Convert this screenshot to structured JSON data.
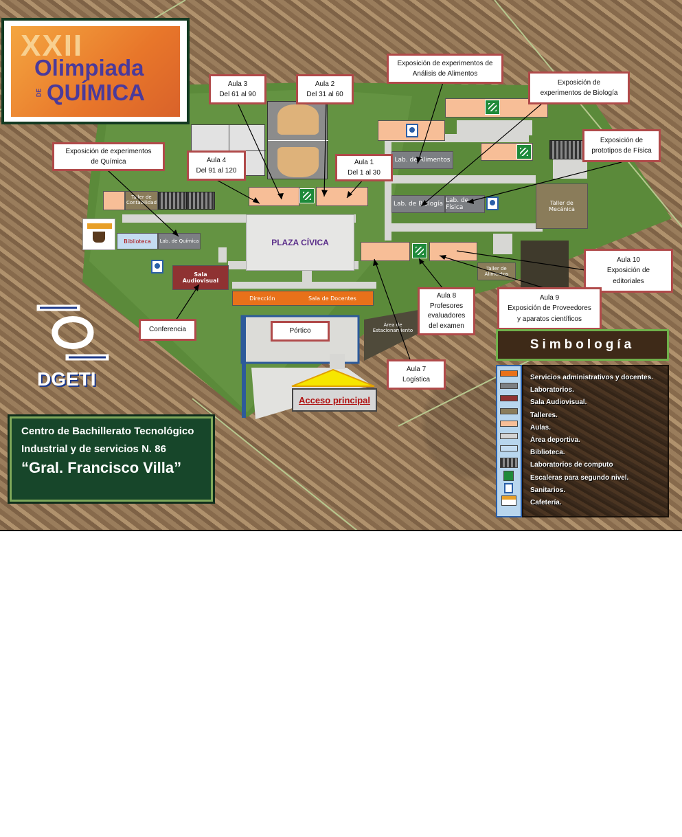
{
  "event_logo": {
    "line1": "XXII",
    "line2": "Olimpiada",
    "de": "DE",
    "line3": "QUÍMICA"
  },
  "map_labels": {
    "plaza_civica": "PLAZA CÍVICA",
    "direccion": "Dirección",
    "sala_docentes": "Sala de Docentes",
    "biblioteca": "Biblioteca",
    "lab_quimica": "Lab. de Química",
    "taller_contabilidad": "Taller de Contabilidad",
    "lab_alimentos": "Lab. de Alimentos",
    "lab_biologia": "Lab. de Biología",
    "lab_fisica": "Lab. de Física",
    "taller_mecanica": "Taller de Mecánica",
    "taller_alimentos": "Taller de Alimentos",
    "sala_audiovisual": "Sala Audiovisual",
    "estacionamiento": "Área de Estacionamiento",
    "acceso_principal": "Acceso principal"
  },
  "callouts": {
    "aula3": {
      "line1": "Aula 3",
      "line2": "Del 61 al 90"
    },
    "aula2": {
      "line1": "Aula 2",
      "line2": "Del 31 al 60"
    },
    "aula4": {
      "line1": "Aula 4",
      "line2": "Del 91 al 120"
    },
    "aula1": {
      "line1": "Aula 1",
      "line2": "Del 1 al 30"
    },
    "exp_quimica": {
      "line1": "Exposición de experimentos",
      "line2": "de Química"
    },
    "exp_alimentos": {
      "line1": "Exposición de experimentos de",
      "line2": "Análisis de Alimentos"
    },
    "exp_biologia": {
      "line1": "Exposición de",
      "line2": "experimentos de Biología"
    },
    "exp_fisica": {
      "line1": "Exposición de",
      "line2": "prototipos de Física"
    },
    "aula10": {
      "line1": "Aula 10",
      "line2": "Exposición de",
      "line3": "editoriales"
    },
    "aula9": {
      "line1": "Aula 9",
      "line2": "Exposición de Proveedores",
      "line3": "y aparatos científicos"
    },
    "aula8": {
      "line1": "Aula 8",
      "line2": "Profesores",
      "line3": "evaluadores",
      "line4": "del examen"
    },
    "aula7": {
      "line1": "Aula 7",
      "line2": "Logística"
    },
    "conferencia": {
      "line1": "Conferencia"
    },
    "portico": {
      "line1": "Pórtico"
    }
  },
  "dgeti_logo_text": "DGETI",
  "school": {
    "line1": "Centro de Bachillerato Tecnológico",
    "line2": "Industrial y de servicios N. 86",
    "line3": "“Gral. Francisco Villa”"
  },
  "legend": {
    "title": "Simbología",
    "items": [
      {
        "label": "Servicios administrativos y docentes.",
        "color": "#e8711a"
      },
      {
        "label": "Laboratorios.",
        "color": "#7c7f83"
      },
      {
        "label": "Sala Audiovisual.",
        "color": "#8f3232"
      },
      {
        "label": "Talleres.",
        "color": "#8a7c5a"
      },
      {
        "label": "Aulas.",
        "color": "#f7be97"
      },
      {
        "label": "Área deportiva.",
        "color": "#d4d4d4"
      },
      {
        "label": "Biblioteca.",
        "color": "#c4dcf1"
      },
      {
        "label": "Laboratorios de computo",
        "icon": "computer-lab-icon"
      },
      {
        "label": "Escaleras para segundo nivel.",
        "icon": "stairs-icon"
      },
      {
        "label": "Sanitarios.",
        "icon": "restroom-icon"
      },
      {
        "label": "Cafetería.",
        "icon": "cafe-icon"
      }
    ]
  },
  "colors": {
    "grass": "#5e8a3c",
    "admin": "#e8711a",
    "aula": "#f7be97",
    "lab": "#7c7f83",
    "audiovisual": "#8f3232",
    "taller": "#8a7c5a",
    "callout_border": "#b04a4a",
    "school_box": "#1f5a34"
  }
}
